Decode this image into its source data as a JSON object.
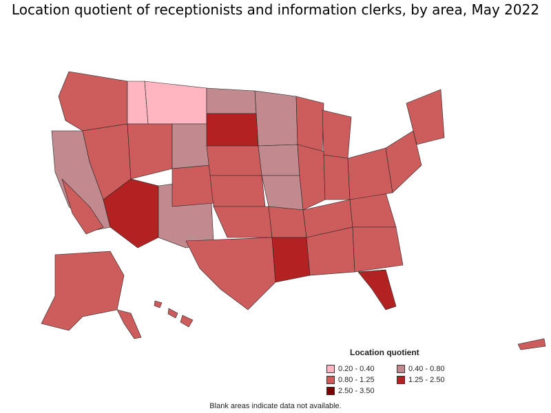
{
  "title": "Location quotient of receptionists and information clerks, by area, May 2022",
  "legend": {
    "title": "Location quotient",
    "items": [
      {
        "label": "0.20 - 0.40",
        "color": "#ffb6c1"
      },
      {
        "label": "0.40 - 0.80",
        "color": "#c08a8e"
      },
      {
        "label": "0.80 - 1.25",
        "color": "#cd5c5c"
      },
      {
        "label": "1.25 - 2.50",
        "color": "#b22222"
      },
      {
        "label": "2.50 - 3.50",
        "color": "#7a0000"
      }
    ]
  },
  "footnote": "Blank areas indicate data not available.",
  "colors": {
    "border": "#222222",
    "region_border": "#000000"
  }
}
